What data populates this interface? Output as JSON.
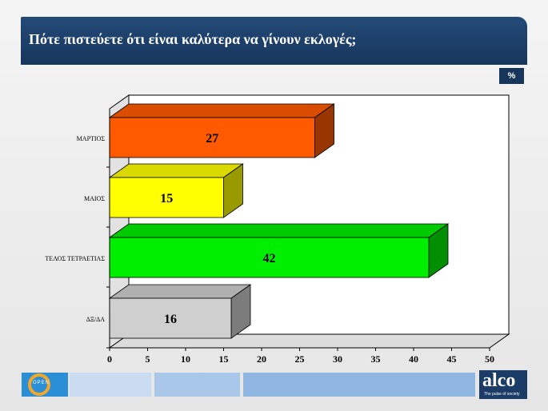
{
  "title": "Πότε πιστεύετε ότι είναι καλύτερα να γίνουν εκλογές;",
  "unit": "%",
  "colors": {
    "header": "#17365c",
    "footer": "#9cc0e6"
  },
  "chart_data": {
    "type": "bar",
    "orientation": "horizontal",
    "three_d": true,
    "categories": [
      "ΜΑΡΤΙΟΣ",
      "ΜΑΙΟΣ",
      "ΤΕΛΟΣ ΤΕΤΡΑΕΤΙΑΣ",
      "ΔΞ/ΔΑ"
    ],
    "values": [
      27,
      15,
      42,
      16
    ],
    "bar_colors": [
      "#ff5a00",
      "#ffff00",
      "#00ee00",
      "#cfcfcf"
    ],
    "data_labels": [
      "27",
      "15",
      "42",
      "16"
    ],
    "xlim": [
      0,
      50
    ],
    "x_ticks": [
      0,
      5,
      10,
      15,
      20,
      25,
      30,
      35,
      40,
      45,
      50
    ],
    "grid": false
  },
  "footer": {
    "logo_left": "OPEN",
    "logo_right": "alco",
    "logo_right_tagline": "The pulse of society"
  }
}
